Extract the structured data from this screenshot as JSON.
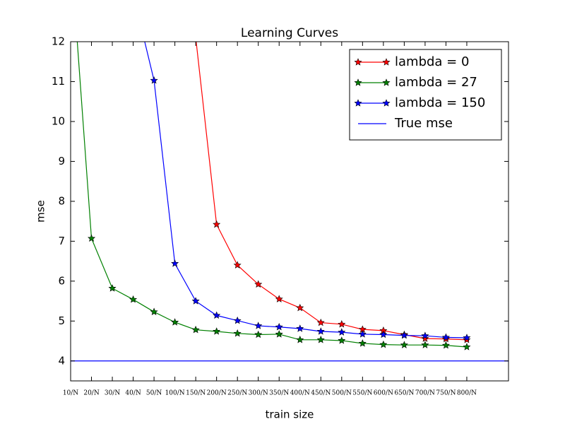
{
  "chart_data": {
    "type": "line",
    "title": "Learning Curves",
    "x_label": "train size",
    "y_label": "mse",
    "categories": [
      "10/N",
      "20/N",
      "30/N",
      "40/N",
      "50/N",
      "100/N",
      "150/N",
      "200/N",
      "250/N",
      "300/N",
      "350/N",
      "400/N",
      "450/N",
      "500/N",
      "550/N",
      "600/N",
      "650/N",
      "700/N",
      "750/N",
      "800/N"
    ],
    "series": [
      {
        "name": "lambda = 0",
        "color": "#ff0000",
        "marker": "star",
        "values": [
          null,
          null,
          null,
          null,
          null,
          null,
          12.1,
          7.42,
          6.4,
          5.92,
          5.55,
          5.33,
          4.96,
          4.92,
          4.79,
          4.76,
          4.66,
          4.56,
          4.55,
          4.53
        ]
      },
      {
        "name": "lambda = 27",
        "color": "#008000",
        "marker": "star",
        "values": [
          14.3,
          7.07,
          5.82,
          5.54,
          5.23,
          4.97,
          4.78,
          4.74,
          4.69,
          4.66,
          4.67,
          4.53,
          4.53,
          4.51,
          4.44,
          4.41,
          4.4,
          4.4,
          4.39,
          4.35
        ]
      },
      {
        "name": "lambda = 150",
        "color": "#0000ff",
        "marker": "star",
        "values": [
          null,
          null,
          null,
          13.2,
          11.03,
          6.44,
          5.5,
          5.14,
          5.01,
          4.88,
          4.85,
          4.81,
          4.74,
          4.72,
          4.67,
          4.66,
          4.64,
          4.63,
          4.59,
          4.58
        ]
      },
      {
        "name": "True mse",
        "color": "#0000ff",
        "hline": 4
      }
    ],
    "ylim": [
      3.5,
      12
    ],
    "yticks": [
      4,
      5,
      6,
      7,
      8,
      9,
      10,
      11,
      12
    ],
    "legend": "upper right"
  }
}
